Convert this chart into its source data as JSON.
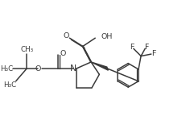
{
  "background_color": "#ffffff",
  "line_color": "#3a3a3a",
  "line_width": 1.1,
  "font_size": 6.8,
  "figsize": [
    2.32,
    1.6
  ],
  "dpi": 100,
  "xlim": [
    0,
    11
  ],
  "ylim": [
    0,
    7.5
  ]
}
